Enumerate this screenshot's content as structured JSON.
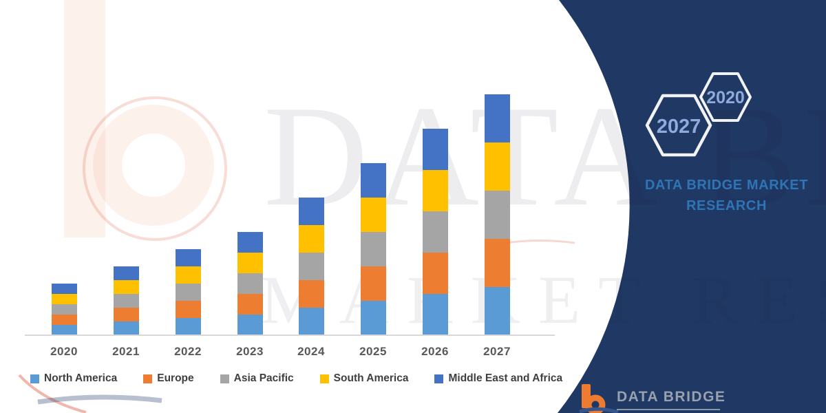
{
  "watermark": {
    "line1": "DATA BRIDGE",
    "line2": "MARKET RESEARCH"
  },
  "panel": {
    "background_color": "#203864",
    "hexagons": [
      {
        "label": "2027"
      },
      {
        "label": "2020"
      }
    ],
    "title_line1": "DATA BRIDGE MARKET",
    "title_line2": "RESEARCH",
    "title_color": "#2E75B6",
    "hexagon_text_color": "#8FAADC"
  },
  "logo": {
    "icon": "databridge-b-mark",
    "icon_color": "#EE7B30",
    "text": "DATA BRIDGE",
    "text_color": "#99A1AF"
  },
  "chart_data": {
    "type": "bar",
    "stacked": true,
    "title": "",
    "xlabel": "",
    "ylabel": "",
    "categories": [
      "2020",
      "2021",
      "2022",
      "2023",
      "2024",
      "2025",
      "2026",
      "2027"
    ],
    "series": [
      {
        "name": "North America",
        "color": "#5B9BD5",
        "values": [
          3,
          4,
          5,
          6,
          8,
          10,
          12,
          14
        ]
      },
      {
        "name": "Europe",
        "color": "#ED7D31",
        "values": [
          3,
          4,
          5,
          6,
          8,
          10,
          12,
          14
        ]
      },
      {
        "name": "Asia Pacific",
        "color": "#A5A5A5",
        "values": [
          3,
          4,
          5,
          6,
          8,
          10,
          12,
          14
        ]
      },
      {
        "name": "South America",
        "color": "#FFC000",
        "values": [
          3,
          4,
          5,
          6,
          8,
          10,
          12,
          14
        ]
      },
      {
        "name": "Middle East and Africa",
        "color": "#4472C4",
        "values": [
          3,
          4,
          5,
          6,
          8,
          10,
          12,
          14
        ]
      }
    ],
    "stack_totals": [
      15,
      20,
      25,
      30,
      40,
      50,
      60,
      70
    ],
    "ylim": [
      0,
      75
    ],
    "axis_labels_shown": false,
    "grid": false,
    "legend_position": "bottom"
  }
}
